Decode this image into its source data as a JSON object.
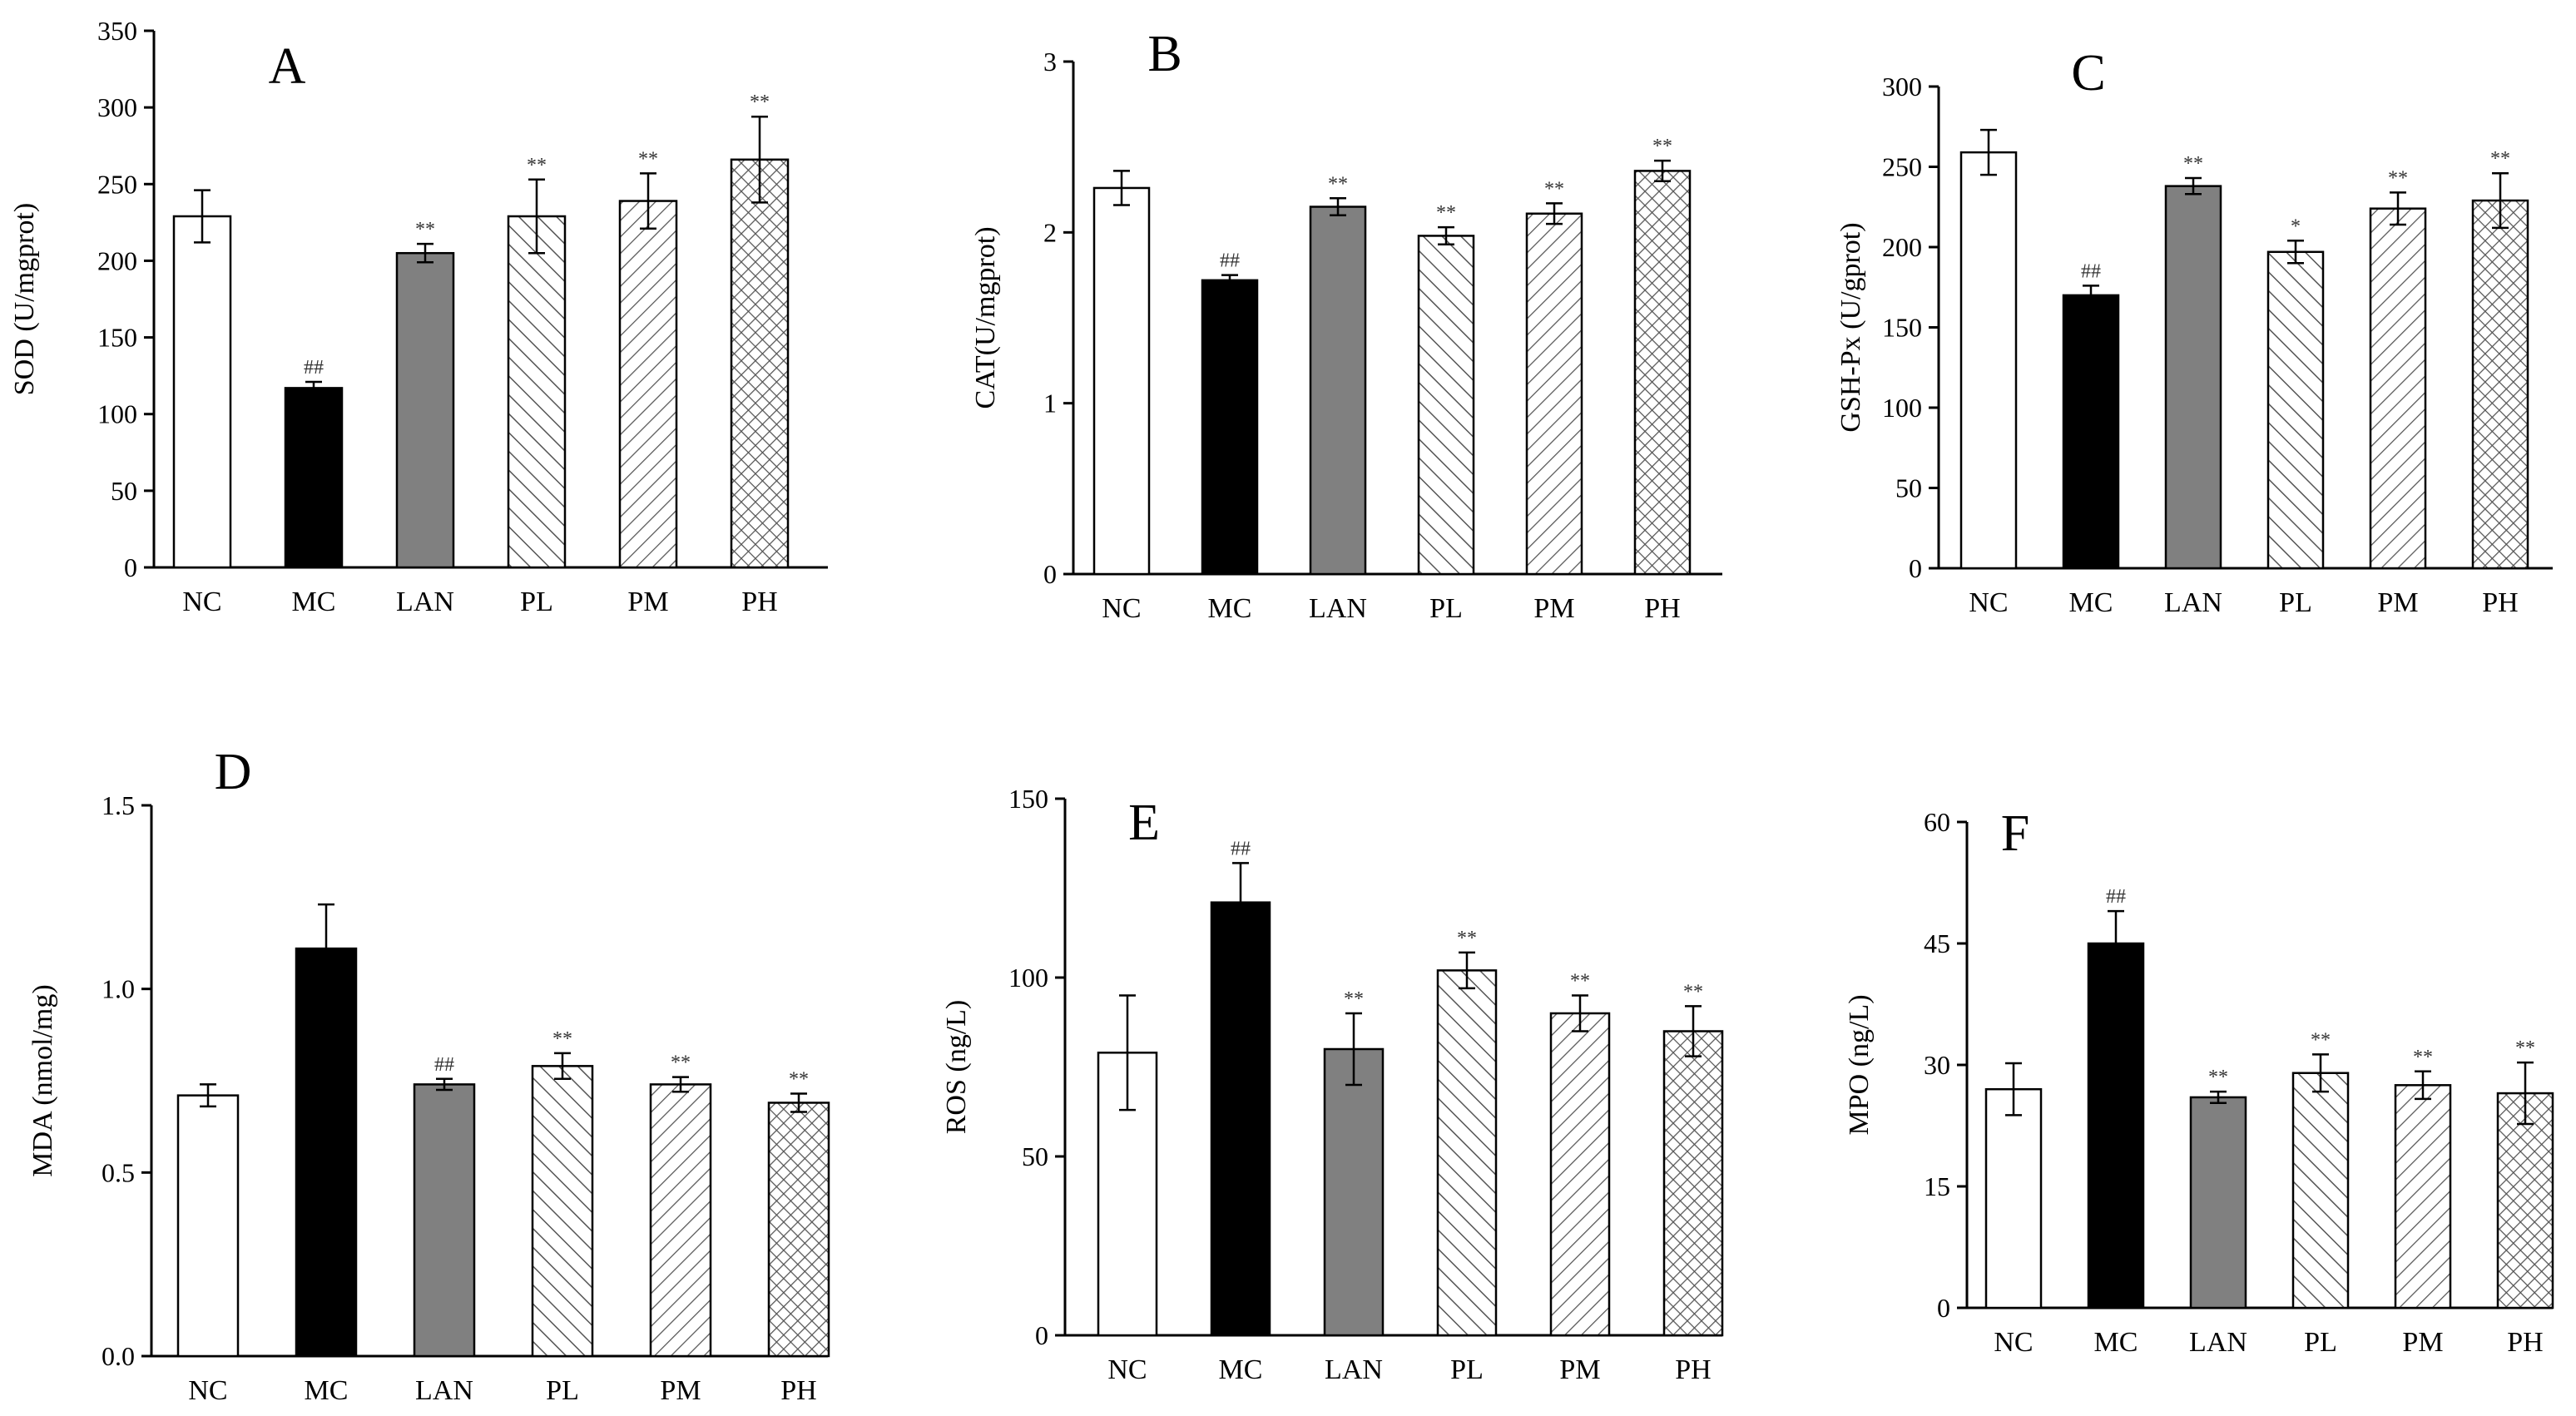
{
  "figure": {
    "background": "#ffffff"
  },
  "patterns": {
    "NC": "none",
    "MC": "solid-black",
    "LAN": "solid-gray",
    "PL": "forward-diagonal",
    "PM": "back-diagonal",
    "PH": "crosshatch"
  },
  "colors": {
    "black": "#000000",
    "gray": "#808080",
    "hatch": "#555555",
    "white": "#ffffff"
  },
  "chart_data": [
    {
      "panel": "A",
      "type": "bar",
      "ylabel": "SOD (U/mgprot)",
      "ylim": [
        0,
        350
      ],
      "yticks": [
        0,
        50,
        100,
        150,
        200,
        250,
        300,
        350
      ],
      "tick_decimals": 0,
      "categories": [
        "NC",
        "MC",
        "LAN",
        "PL",
        "PM",
        "PH"
      ],
      "values": [
        229,
        117,
        205,
        229,
        239,
        266
      ],
      "errors": [
        17,
        4,
        6,
        24,
        18,
        28
      ],
      "annotations": [
        "",
        "##",
        "**",
        "**",
        "**",
        "**"
      ]
    },
    {
      "panel": "B",
      "type": "bar",
      "ylabel": "CAT(U/mgprot)",
      "ylim": [
        0,
        3
      ],
      "yticks": [
        0,
        1,
        2,
        3
      ],
      "tick_decimals": 0,
      "categories": [
        "NC",
        "MC",
        "LAN",
        "PL",
        "PM",
        "PH"
      ],
      "values": [
        2.26,
        1.72,
        2.15,
        1.98,
        2.11,
        2.36
      ],
      "errors": [
        0.1,
        0.03,
        0.05,
        0.05,
        0.06,
        0.06
      ],
      "annotations": [
        "",
        "##",
        "**",
        "**",
        "**",
        "**"
      ]
    },
    {
      "panel": "C",
      "type": "bar",
      "ylabel": "GSH-Px (U/gprot)",
      "ylim": [
        0,
        300
      ],
      "yticks": [
        0,
        50,
        100,
        150,
        200,
        250,
        300
      ],
      "tick_decimals": 0,
      "categories": [
        "NC",
        "MC",
        "LAN",
        "PL",
        "PM",
        "PH"
      ],
      "values": [
        259,
        170,
        238,
        197,
        224,
        229
      ],
      "errors": [
        14,
        6,
        5,
        7,
        10,
        17
      ],
      "annotations": [
        "",
        "##",
        "**",
        "*",
        "**",
        "**"
      ]
    },
    {
      "panel": "D",
      "type": "bar",
      "ylabel": "MDA (nmol/mg)",
      "ylim": [
        0,
        1.5
      ],
      "yticks": [
        0,
        0.5,
        1.0,
        1.5
      ],
      "tick_decimals": 1,
      "categories": [
        "NC",
        "MC",
        "LAN",
        "PL",
        "PM",
        "PH"
      ],
      "values": [
        0.71,
        1.11,
        0.74,
        0.79,
        0.74,
        0.69
      ],
      "errors": [
        0.03,
        0.12,
        0.015,
        0.035,
        0.02,
        0.025
      ],
      "annotations": [
        "",
        "",
        "##",
        "**",
        "**",
        "**"
      ]
    },
    {
      "panel": "E",
      "type": "bar",
      "ylabel": "ROS (ng/L)",
      "ylim": [
        0,
        150
      ],
      "yticks": [
        0,
        50,
        100,
        150
      ],
      "tick_decimals": 0,
      "categories": [
        "NC",
        "MC",
        "LAN",
        "PL",
        "PM",
        "PH"
      ],
      "values": [
        79,
        121,
        80,
        102,
        90,
        85
      ],
      "errors": [
        16,
        11,
        10,
        5,
        5,
        7
      ],
      "annotations": [
        "",
        "##",
        "**",
        "**",
        "**",
        "**"
      ]
    },
    {
      "panel": "F",
      "type": "bar",
      "ylabel": "MPO (ng/L)",
      "ylim": [
        0,
        60
      ],
      "yticks": [
        0,
        15,
        30,
        45,
        60
      ],
      "tick_decimals": 0,
      "categories": [
        "NC",
        "MC",
        "LAN",
        "PL",
        "PM",
        "PH"
      ],
      "values": [
        27,
        45,
        26,
        29,
        27.5,
        26.5
      ],
      "errors": [
        3.2,
        4,
        0.7,
        2.3,
        1.7,
        3.8
      ],
      "annotations": [
        "",
        "##",
        "**",
        "**",
        "**",
        "**"
      ]
    }
  ]
}
